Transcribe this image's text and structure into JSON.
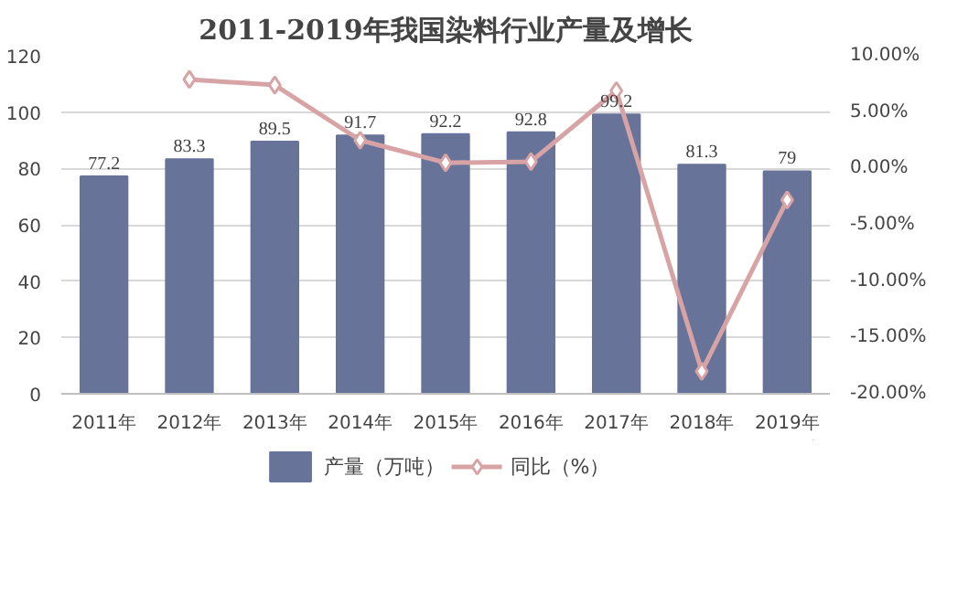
{
  "chart_data": {
    "type": "bar",
    "title": "2011-2019年我国染料行业产量及增长",
    "categories": [
      "2011年",
      "2012年",
      "2013年",
      "2014年",
      "2015年",
      "2016年",
      "2017年",
      "2018年",
      "2019年"
    ],
    "series": [
      {
        "name": "产量（万吨）",
        "color": "#68739a",
        "values": [
          77.2,
          83.3,
          89.5,
          91.7,
          92.2,
          92.8,
          99.2,
          81.3,
          79
        ],
        "value_labels": [
          "77.2",
          "83.3",
          "89.5",
          "91.7",
          "92.2",
          "92.8",
          "99.2",
          "81.3",
          "79"
        ]
      },
      {
        "name": "同比（%）",
        "type": "line",
        "axis": "y2",
        "color": "#d8a3a5",
        "marker": "diamond",
        "values": [
          null,
          7.9,
          7.4,
          2.5,
          0.5,
          0.6,
          6.9,
          -18.0,
          -2.8
        ]
      }
    ],
    "ylim": [
      0,
      120
    ],
    "yticks": [
      0,
      20,
      40,
      60,
      80,
      100,
      120
    ],
    "y2lim": [
      -20,
      10
    ],
    "y2ticks": [
      {
        "value": -20,
        "label": "-20.00%"
      },
      {
        "value": -15,
        "label": "-15.00%"
      },
      {
        "value": -10,
        "label": "-10.00%"
      },
      {
        "value": -5,
        "label": "-5.00%"
      },
      {
        "value": 0,
        "label": "0.00%"
      },
      {
        "value": 5,
        "label": "5.00%"
      },
      {
        "value": 10,
        "label": "10.00%"
      }
    ],
    "grid": "y",
    "legend": "bottom"
  }
}
